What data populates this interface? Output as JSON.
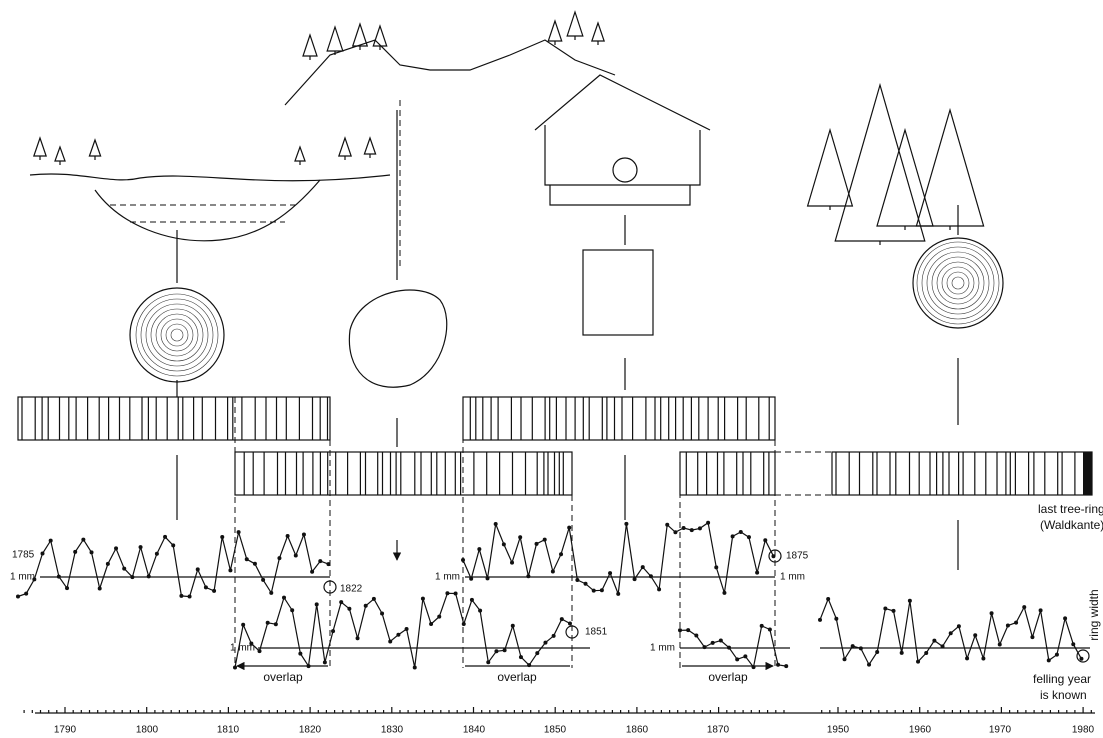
{
  "axis": {
    "labels": [
      "1790",
      "1800",
      "1810",
      "1820",
      "1830",
      "1840",
      "1850",
      "1860",
      "1870",
      "1950",
      "1960",
      "1970",
      "1980"
    ]
  },
  "years": {
    "start": "1785",
    "end_a": "1822",
    "end_b": "1851",
    "end_c": "1875"
  },
  "scale_labels": [
    "1 mm",
    "1 mm",
    "1 mm",
    "1 mm",
    "1 mm"
  ],
  "overlaps": [
    "overlap",
    "overlap",
    "overlap"
  ],
  "annotations": {
    "last_ring": [
      "last tree-ring",
      "(Waldkante)"
    ],
    "ring_width": "ring width",
    "felling": [
      "felling year",
      "is known"
    ]
  }
}
